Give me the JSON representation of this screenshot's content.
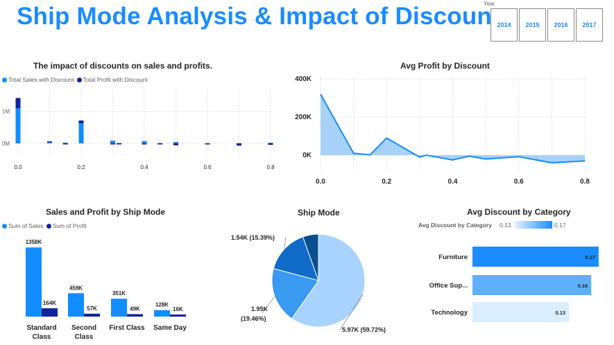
{
  "header": {
    "title": "Ship Mode Analysis & Impact of Discounts"
  },
  "year_slicer": {
    "label": "Year",
    "options": [
      "2014",
      "2015",
      "2016",
      "2017"
    ]
  },
  "colors": {
    "title": "#1a8cff",
    "sales": "#118dff",
    "profit": "#12239e",
    "pie": [
      "#a8d3ff",
      "#3a99f0",
      "#0f6bc7",
      "#0a4e8f"
    ],
    "category": [
      "#1a8cff",
      "#5fb0fb",
      "#dbeeff"
    ]
  },
  "chart_data": [
    {
      "id": "discount_impact",
      "type": "bar",
      "title": "The impact of discounts on sales and profits.",
      "legend": [
        "Total Sales with Discount",
        "Total Profit with Discount"
      ],
      "legend_position": "top-left",
      "x": [
        0.0,
        0.1,
        0.15,
        0.2,
        0.3,
        0.32,
        0.4,
        0.45,
        0.5,
        0.6,
        0.7,
        0.8
      ],
      "series": [
        {
          "name": "Total Sales with Discount",
          "values": [
            1090000,
            55000,
            25000,
            620000,
            85000,
            15000,
            75000,
            12000,
            45000,
            8000,
            10000,
            22000
          ]
        },
        {
          "name": "Total Profit with Discount",
          "values": [
            320000,
            9000,
            -1000,
            90000,
            -30000,
            -2000,
            -30000,
            -1000,
            -60000,
            -6000,
            -70000,
            -45000
          ]
        }
      ],
      "xticks": [
        "0.0",
        "0.2",
        "0.4",
        "0.6",
        "0.8"
      ],
      "yticks": [
        "0M",
        "1M"
      ],
      "ylim": [
        -200000,
        1450000
      ],
      "grid": true
    },
    {
      "id": "avg_profit",
      "type": "area",
      "title": "Avg Profit by Discount",
      "x": [
        0.0,
        0.1,
        0.15,
        0.2,
        0.3,
        0.32,
        0.4,
        0.45,
        0.5,
        0.6,
        0.7,
        0.8
      ],
      "values": [
        320000,
        10000,
        2000,
        90000,
        -10000,
        0,
        -25000,
        -5000,
        -20000,
        -8000,
        -40000,
        -30000
      ],
      "xticks": [
        "0.0",
        "0.2",
        "0.4",
        "0.6",
        "0.8"
      ],
      "yticks": [
        "0K",
        "200K",
        "400K"
      ],
      "ylim": [
        -80000,
        400000
      ],
      "xlim": [
        0,
        0.8
      ],
      "grid": true
    },
    {
      "id": "ship_mode_bars",
      "type": "bar",
      "title": "Sales and Profit by Ship Mode",
      "legend": [
        "Sum of Sales",
        "Sum of Profit"
      ],
      "legend_position": "top-left",
      "categories": [
        "Standard Class",
        "Second Class",
        "First Class",
        "Same Day"
      ],
      "series": [
        {
          "name": "Sum of Sales",
          "values": [
            1358,
            459,
            351,
            128
          ],
          "labels": [
            "1358K",
            "459K",
            "351K",
            "128K"
          ]
        },
        {
          "name": "Sum of Profit",
          "values": [
            164,
            57,
            49,
            16
          ],
          "labels": [
            "164K",
            "57K",
            "49K",
            "16K"
          ]
        }
      ]
    },
    {
      "id": "ship_mode_pie",
      "type": "pie",
      "title": "Ship Mode",
      "slices": [
        {
          "value": 59.72,
          "label": "5.97K (59.72%)"
        },
        {
          "value": 19.46,
          "label": "1.95K (19.46%)"
        },
        {
          "value": 15.39,
          "label": "1.54K (15.39%)"
        },
        {
          "value": 5.43,
          "label": ""
        }
      ]
    },
    {
      "id": "avg_discount",
      "type": "bar",
      "orientation": "horizontal",
      "title": "Avg Discount by Category",
      "legend_title": "Avg Discount by Category",
      "legend_min": "0.13",
      "legend_max": "0.17",
      "categories": [
        "Furniture",
        "Office Sup...",
        "Technology"
      ],
      "values": [
        0.17,
        0.16,
        0.13
      ],
      "labels": [
        "0.17",
        "0.16",
        "0.13"
      ]
    }
  ]
}
